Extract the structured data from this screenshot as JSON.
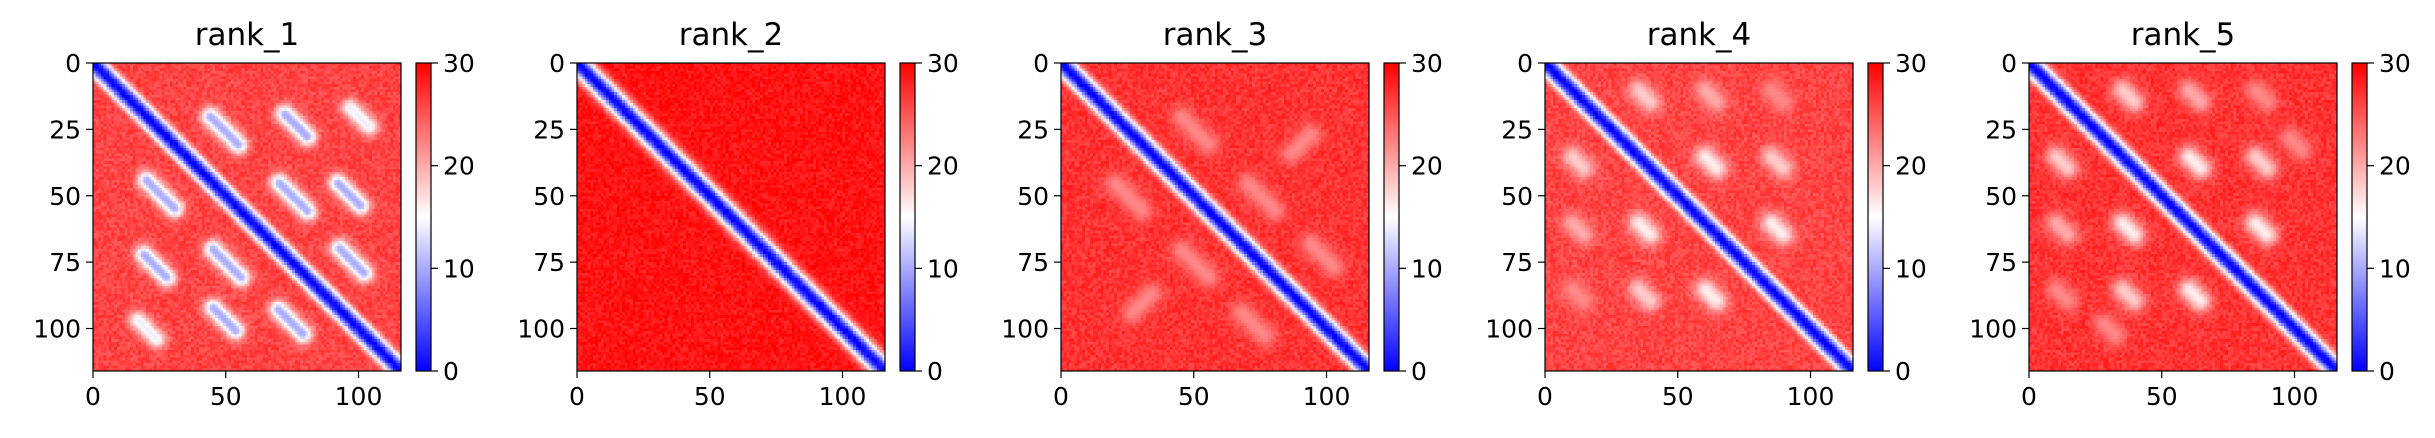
{
  "chart_data": [
    {
      "type": "heatmap",
      "title": "rank_1",
      "n": 116,
      "xlim": [
        0,
        116
      ],
      "ylim": [
        116,
        0
      ],
      "xticks": [
        0,
        50,
        100
      ],
      "yticks": [
        0,
        25,
        50,
        75,
        100
      ],
      "colorbar": {
        "range": [
          0,
          30
        ],
        "ticks": [
          0,
          10,
          20,
          30
        ],
        "colormap": "bwr"
      },
      "diagonal_width": 4,
      "background_value": 26,
      "contacts": [
        {
          "center": [
            25,
            49
          ],
          "length": 15,
          "value": 10,
          "width": 2.5,
          "dir": "parallel"
        },
        {
          "center": [
            49,
            25
          ],
          "length": 15,
          "value": 10,
          "width": 2.5,
          "dir": "parallel"
        },
        {
          "center": [
            50,
            75
          ],
          "length": 15,
          "value": 10,
          "width": 2.5,
          "dir": "parallel"
        },
        {
          "center": [
            75,
            50
          ],
          "length": 15,
          "value": 10,
          "width": 2.5,
          "dir": "parallel"
        },
        {
          "center": [
            74,
            97
          ],
          "length": 13,
          "value": 10,
          "width": 2.5,
          "dir": "parallel"
        },
        {
          "center": [
            97,
            74
          ],
          "length": 13,
          "value": 10,
          "width": 2.5,
          "dir": "parallel"
        },
        {
          "center": [
            76,
            23
          ],
          "length": 12,
          "value": 10,
          "width": 2.5,
          "dir": "parallel"
        },
        {
          "center": [
            23,
            76
          ],
          "length": 12,
          "value": 10,
          "width": 2.5,
          "dir": "parallel"
        },
        {
          "center": [
            96,
            49
          ],
          "length": 12,
          "value": 10,
          "width": 2.5,
          "dir": "parallel"
        },
        {
          "center": [
            49,
            96
          ],
          "length": 12,
          "value": 10,
          "width": 2.5,
          "dir": "parallel"
        },
        {
          "center": [
            100,
            20
          ],
          "length": 10,
          "value": 14,
          "width": 2.5,
          "dir": "parallel"
        },
        {
          "center": [
            20,
            100
          ],
          "length": 10,
          "value": 14,
          "width": 2.5,
          "dir": "parallel"
        }
      ]
    },
    {
      "type": "heatmap",
      "title": "rank_2",
      "n": 116,
      "xlim": [
        0,
        116
      ],
      "ylim": [
        116,
        0
      ],
      "xticks": [
        0,
        50,
        100
      ],
      "yticks": [
        0,
        25,
        50,
        75,
        100
      ],
      "colorbar": {
        "range": [
          0,
          30
        ],
        "ticks": [
          0,
          10,
          20,
          30
        ],
        "colormap": "bwr"
      },
      "diagonal_width": 4,
      "background_value": 29,
      "contacts": []
    },
    {
      "type": "heatmap",
      "title": "rank_3",
      "n": 116,
      "xlim": [
        0,
        116
      ],
      "ylim": [
        116,
        0
      ],
      "xticks": [
        0,
        50,
        100
      ],
      "yticks": [
        0,
        25,
        50,
        75,
        100
      ],
      "colorbar": {
        "range": [
          0,
          30
        ],
        "ticks": [
          0,
          10,
          20,
          30
        ],
        "colormap": "bwr"
      },
      "diagonal_width": 4,
      "background_value": 27,
      "contacts": [
        {
          "center": [
            25,
            50
          ],
          "length": 14,
          "value": 22,
          "width": 3,
          "dir": "parallel"
        },
        {
          "center": [
            50,
            25
          ],
          "length": 14,
          "value": 22,
          "width": 3,
          "dir": "parallel"
        },
        {
          "center": [
            50,
            75
          ],
          "length": 14,
          "value": 22,
          "width": 3,
          "dir": "parallel"
        },
        {
          "center": [
            75,
            50
          ],
          "length": 14,
          "value": 22,
          "width": 3,
          "dir": "parallel"
        },
        {
          "center": [
            72,
            98
          ],
          "length": 12,
          "value": 22,
          "width": 3,
          "dir": "parallel"
        },
        {
          "center": [
            98,
            72
          ],
          "length": 12,
          "value": 22,
          "width": 3,
          "dir": "parallel"
        },
        {
          "center": [
            90,
            30
          ],
          "length": 10,
          "value": 22,
          "width": 3,
          "dir": "perpendicular"
        },
        {
          "center": [
            30,
            90
          ],
          "length": 10,
          "value": 22,
          "width": 3,
          "dir": "perpendicular"
        }
      ]
    },
    {
      "type": "heatmap",
      "title": "rank_4",
      "n": 116,
      "xlim": [
        0,
        116
      ],
      "ylim": [
        116,
        0
      ],
      "xticks": [
        0,
        50,
        100
      ],
      "yticks": [
        0,
        25,
        50,
        75,
        100
      ],
      "colorbar": {
        "range": [
          0,
          30
        ],
        "ticks": [
          0,
          10,
          20,
          30
        ],
        "colormap": "bwr"
      },
      "diagonal_width": 4,
      "background_value": 26,
      "contacts": [
        {
          "center": [
            37,
            12
          ],
          "length": 6,
          "value": 18,
          "width": 3,
          "dir": "parallel"
        },
        {
          "center": [
            12,
            37
          ],
          "length": 6,
          "value": 18,
          "width": 3,
          "dir": "parallel"
        },
        {
          "center": [
            62,
            37
          ],
          "length": 6,
          "value": 16,
          "width": 3,
          "dir": "parallel"
        },
        {
          "center": [
            37,
            62
          ],
          "length": 6,
          "value": 16,
          "width": 3,
          "dir": "parallel"
        },
        {
          "center": [
            87,
            62
          ],
          "length": 6,
          "value": 16,
          "width": 3,
          "dir": "parallel"
        },
        {
          "center": [
            62,
            87
          ],
          "length": 6,
          "value": 16,
          "width": 3,
          "dir": "parallel"
        },
        {
          "center": [
            62,
            12
          ],
          "length": 6,
          "value": 20,
          "width": 3,
          "dir": "parallel"
        },
        {
          "center": [
            12,
            62
          ],
          "length": 6,
          "value": 20,
          "width": 3,
          "dir": "parallel"
        },
        {
          "center": [
            87,
            37
          ],
          "length": 6,
          "value": 18,
          "width": 3,
          "dir": "parallel"
        },
        {
          "center": [
            37,
            87
          ],
          "length": 6,
          "value": 18,
          "width": 3,
          "dir": "parallel"
        },
        {
          "center": [
            87,
            12
          ],
          "length": 6,
          "value": 22,
          "width": 3,
          "dir": "parallel"
        },
        {
          "center": [
            12,
            87
          ],
          "length": 6,
          "value": 22,
          "width": 3,
          "dir": "parallel"
        }
      ]
    },
    {
      "type": "heatmap",
      "title": "rank_5",
      "n": 116,
      "xlim": [
        0,
        116
      ],
      "ylim": [
        116,
        0
      ],
      "xticks": [
        0,
        50,
        100
      ],
      "yticks": [
        0,
        25,
        50,
        75,
        100
      ],
      "colorbar": {
        "range": [
          0,
          30
        ],
        "ticks": [
          0,
          10,
          20,
          30
        ],
        "colormap": "bwr"
      },
      "diagonal_width": 4,
      "background_value": 27,
      "contacts": [
        {
          "center": [
            37,
            12
          ],
          "length": 6,
          "value": 18,
          "width": 3,
          "dir": "parallel"
        },
        {
          "center": [
            12,
            37
          ],
          "length": 6,
          "value": 18,
          "width": 3,
          "dir": "parallel"
        },
        {
          "center": [
            62,
            37
          ],
          "length": 6,
          "value": 16,
          "width": 3,
          "dir": "parallel"
        },
        {
          "center": [
            37,
            62
          ],
          "length": 6,
          "value": 16,
          "width": 3,
          "dir": "parallel"
        },
        {
          "center": [
            87,
            62
          ],
          "length": 6,
          "value": 16,
          "width": 3,
          "dir": "parallel"
        },
        {
          "center": [
            62,
            87
          ],
          "length": 6,
          "value": 16,
          "width": 3,
          "dir": "parallel"
        },
        {
          "center": [
            62,
            12
          ],
          "length": 6,
          "value": 20,
          "width": 3,
          "dir": "parallel"
        },
        {
          "center": [
            12,
            62
          ],
          "length": 6,
          "value": 20,
          "width": 3,
          "dir": "parallel"
        },
        {
          "center": [
            87,
            37
          ],
          "length": 6,
          "value": 18,
          "width": 3,
          "dir": "parallel"
        },
        {
          "center": [
            37,
            87
          ],
          "length": 6,
          "value": 18,
          "width": 3,
          "dir": "parallel"
        },
        {
          "center": [
            87,
            12
          ],
          "length": 6,
          "value": 22,
          "width": 3,
          "dir": "parallel"
        },
        {
          "center": [
            12,
            87
          ],
          "length": 6,
          "value": 22,
          "width": 3,
          "dir": "parallel"
        },
        {
          "center": [
            100,
            30
          ],
          "length": 6,
          "value": 22,
          "width": 3,
          "dir": "parallel"
        },
        {
          "center": [
            30,
            100
          ],
          "length": 6,
          "value": 22,
          "width": 3,
          "dir": "parallel"
        }
      ]
    }
  ]
}
